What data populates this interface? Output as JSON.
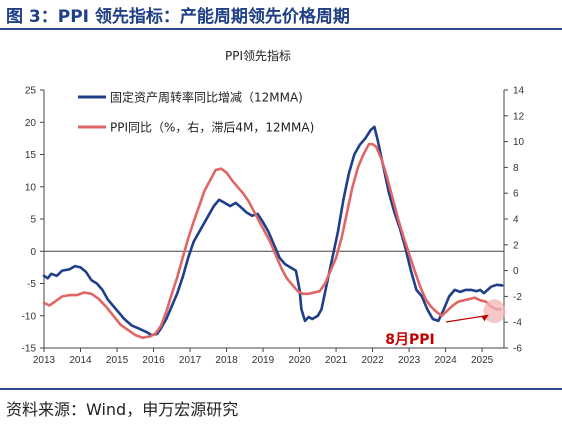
{
  "header": {
    "title": "图 3：PPI 领先指标：产能周期领先价格周期"
  },
  "footer": {
    "source": "资料来源：Wind，申万宏源研究"
  },
  "chart_data": {
    "type": "line",
    "title": "PPI领先指标",
    "x_ticks": [
      "2013",
      "2014",
      "2015",
      "2016",
      "2017",
      "2018",
      "2019",
      "2020",
      "2021",
      "2022",
      "2023",
      "2024",
      "2025"
    ],
    "xlim": [
      2013,
      2025.6
    ],
    "y_left": {
      "lim": [
        -15,
        25
      ],
      "ticks": [
        -15,
        -10,
        -5,
        0,
        5,
        10,
        15,
        20,
        25
      ]
    },
    "y_right": {
      "lim": [
        -6,
        14
      ],
      "ticks": [
        -6,
        -4,
        -2,
        0,
        2,
        4,
        6,
        8,
        10,
        12,
        14
      ]
    },
    "grid": false,
    "zero_line": true,
    "legend_position": "top-left",
    "annotation": {
      "text": "8月PPI",
      "color": "#c00000"
    },
    "series": [
      {
        "name": "固定资产周转率同比增减（12MMA)",
        "axis": "left",
        "color": "#1f3f8a",
        "points": [
          [
            2013.0,
            -3.8
          ],
          [
            2013.1,
            -4.2
          ],
          [
            2013.2,
            -3.5
          ],
          [
            2013.35,
            -3.8
          ],
          [
            2013.5,
            -3.0
          ],
          [
            2013.7,
            -2.8
          ],
          [
            2013.85,
            -2.3
          ],
          [
            2014.0,
            -2.5
          ],
          [
            2014.15,
            -3.2
          ],
          [
            2014.3,
            -4.5
          ],
          [
            2014.45,
            -5.0
          ],
          [
            2014.6,
            -6.0
          ],
          [
            2014.75,
            -7.5
          ],
          [
            2014.9,
            -8.5
          ],
          [
            2015.05,
            -9.5
          ],
          [
            2015.2,
            -10.5
          ],
          [
            2015.4,
            -11.5
          ],
          [
            2015.6,
            -12.0
          ],
          [
            2015.8,
            -12.5
          ],
          [
            2015.95,
            -13.0
          ],
          [
            2016.1,
            -12.8
          ],
          [
            2016.2,
            -12.0
          ],
          [
            2016.35,
            -10.5
          ],
          [
            2016.5,
            -8.5
          ],
          [
            2016.65,
            -6.5
          ],
          [
            2016.8,
            -4.0
          ],
          [
            2016.95,
            -1.0
          ],
          [
            2017.1,
            1.5
          ],
          [
            2017.3,
            3.5
          ],
          [
            2017.5,
            5.5
          ],
          [
            2017.65,
            7.0
          ],
          [
            2017.8,
            8.0
          ],
          [
            2017.95,
            7.5
          ],
          [
            2018.1,
            7.0
          ],
          [
            2018.25,
            7.5
          ],
          [
            2018.4,
            6.8
          ],
          [
            2018.55,
            6.0
          ],
          [
            2018.7,
            5.5
          ],
          [
            2018.85,
            5.8
          ],
          [
            2019.0,
            4.5
          ],
          [
            2019.15,
            3.0
          ],
          [
            2019.3,
            1.0
          ],
          [
            2019.45,
            -1.0
          ],
          [
            2019.6,
            -2.0
          ],
          [
            2019.75,
            -2.5
          ],
          [
            2019.9,
            -3.0
          ],
          [
            2020.0,
            -6.0
          ],
          [
            2020.05,
            -9.0
          ],
          [
            2020.15,
            -10.8
          ],
          [
            2020.25,
            -10.2
          ],
          [
            2020.35,
            -10.5
          ],
          [
            2020.5,
            -10.0
          ],
          [
            2020.6,
            -9.0
          ],
          [
            2020.75,
            -5.0
          ],
          [
            2020.9,
            -1.0
          ],
          [
            2021.05,
            3.0
          ],
          [
            2021.2,
            8.0
          ],
          [
            2021.35,
            12.0
          ],
          [
            2021.5,
            15.0
          ],
          [
            2021.65,
            16.5
          ],
          [
            2021.8,
            17.5
          ],
          [
            2021.95,
            18.8
          ],
          [
            2022.05,
            19.3
          ],
          [
            2022.15,
            17.0
          ],
          [
            2022.3,
            13.0
          ],
          [
            2022.45,
            9.0
          ],
          [
            2022.6,
            6.0
          ],
          [
            2022.75,
            3.5
          ],
          [
            2022.9,
            0.5
          ],
          [
            2023.05,
            -3.0
          ],
          [
            2023.2,
            -6.0
          ],
          [
            2023.35,
            -7.0
          ],
          [
            2023.5,
            -9.0
          ],
          [
            2023.65,
            -10.5
          ],
          [
            2023.8,
            -10.8
          ],
          [
            2023.95,
            -9.0
          ],
          [
            2024.1,
            -7.0
          ],
          [
            2024.25,
            -6.0
          ],
          [
            2024.4,
            -6.3
          ],
          [
            2024.55,
            -6.0
          ],
          [
            2024.7,
            -6.0
          ],
          [
            2024.85,
            -6.2
          ],
          [
            2024.95,
            -6.0
          ],
          [
            2025.05,
            -6.5
          ],
          [
            2025.15,
            -6.0
          ],
          [
            2025.25,
            -5.5
          ],
          [
            2025.4,
            -5.2
          ],
          [
            2025.55,
            -5.3
          ]
        ]
      },
      {
        "name": "PPI同比（%，右，滞后4M，12MMA)",
        "axis": "right",
        "color": "#e06666",
        "points": [
          [
            2013.0,
            -2.5
          ],
          [
            2013.15,
            -2.7
          ],
          [
            2013.3,
            -2.4
          ],
          [
            2013.5,
            -2.0
          ],
          [
            2013.7,
            -1.9
          ],
          [
            2013.9,
            -1.9
          ],
          [
            2014.1,
            -1.7
          ],
          [
            2014.3,
            -1.8
          ],
          [
            2014.5,
            -2.2
          ],
          [
            2014.7,
            -2.8
          ],
          [
            2014.9,
            -3.5
          ],
          [
            2015.1,
            -4.2
          ],
          [
            2015.3,
            -4.6
          ],
          [
            2015.5,
            -5.0
          ],
          [
            2015.7,
            -5.2
          ],
          [
            2015.9,
            -5.1
          ],
          [
            2016.05,
            -4.9
          ],
          [
            2016.2,
            -4.3
          ],
          [
            2016.35,
            -3.2
          ],
          [
            2016.5,
            -1.8
          ],
          [
            2016.65,
            -0.5
          ],
          [
            2016.8,
            1.0
          ],
          [
            2016.95,
            2.5
          ],
          [
            2017.1,
            3.8
          ],
          [
            2017.25,
            5.0
          ],
          [
            2017.4,
            6.2
          ],
          [
            2017.55,
            7.0
          ],
          [
            2017.7,
            7.8
          ],
          [
            2017.85,
            7.9
          ],
          [
            2018.0,
            7.6
          ],
          [
            2018.15,
            7.0
          ],
          [
            2018.3,
            6.5
          ],
          [
            2018.45,
            6.0
          ],
          [
            2018.6,
            5.4
          ],
          [
            2018.75,
            4.6
          ],
          [
            2018.9,
            3.8
          ],
          [
            2019.05,
            3.0
          ],
          [
            2019.2,
            2.2
          ],
          [
            2019.35,
            1.2
          ],
          [
            2019.5,
            0.2
          ],
          [
            2019.65,
            -0.6
          ],
          [
            2019.8,
            -1.1
          ],
          [
            2019.95,
            -1.6
          ],
          [
            2020.1,
            -1.8
          ],
          [
            2020.25,
            -1.8
          ],
          [
            2020.4,
            -1.7
          ],
          [
            2020.55,
            -1.6
          ],
          [
            2020.7,
            -1.0
          ],
          [
            2020.85,
            0.0
          ],
          [
            2021.0,
            1.0
          ],
          [
            2021.15,
            2.5
          ],
          [
            2021.3,
            4.5
          ],
          [
            2021.45,
            6.5
          ],
          [
            2021.6,
            8.0
          ],
          [
            2021.75,
            9.0
          ],
          [
            2021.9,
            9.8
          ],
          [
            2022.0,
            9.8
          ],
          [
            2022.1,
            9.6
          ],
          [
            2022.25,
            8.6
          ],
          [
            2022.4,
            7.2
          ],
          [
            2022.55,
            5.6
          ],
          [
            2022.7,
            4.0
          ],
          [
            2022.85,
            2.6
          ],
          [
            2023.0,
            1.3
          ],
          [
            2023.15,
            0.0
          ],
          [
            2023.3,
            -1.2
          ],
          [
            2023.45,
            -2.2
          ],
          [
            2023.6,
            -2.8
          ],
          [
            2023.75,
            -3.2
          ],
          [
            2023.9,
            -3.5
          ],
          [
            2024.05,
            -3.1
          ],
          [
            2024.2,
            -2.7
          ],
          [
            2024.35,
            -2.4
          ],
          [
            2024.5,
            -2.3
          ],
          [
            2024.65,
            -2.2
          ],
          [
            2024.8,
            -2.1
          ],
          [
            2024.95,
            -2.3
          ],
          [
            2025.1,
            -2.4
          ],
          [
            2025.25,
            -2.8
          ],
          [
            2025.4,
            -3.0
          ],
          [
            2025.5,
            -3.0
          ]
        ]
      }
    ]
  }
}
